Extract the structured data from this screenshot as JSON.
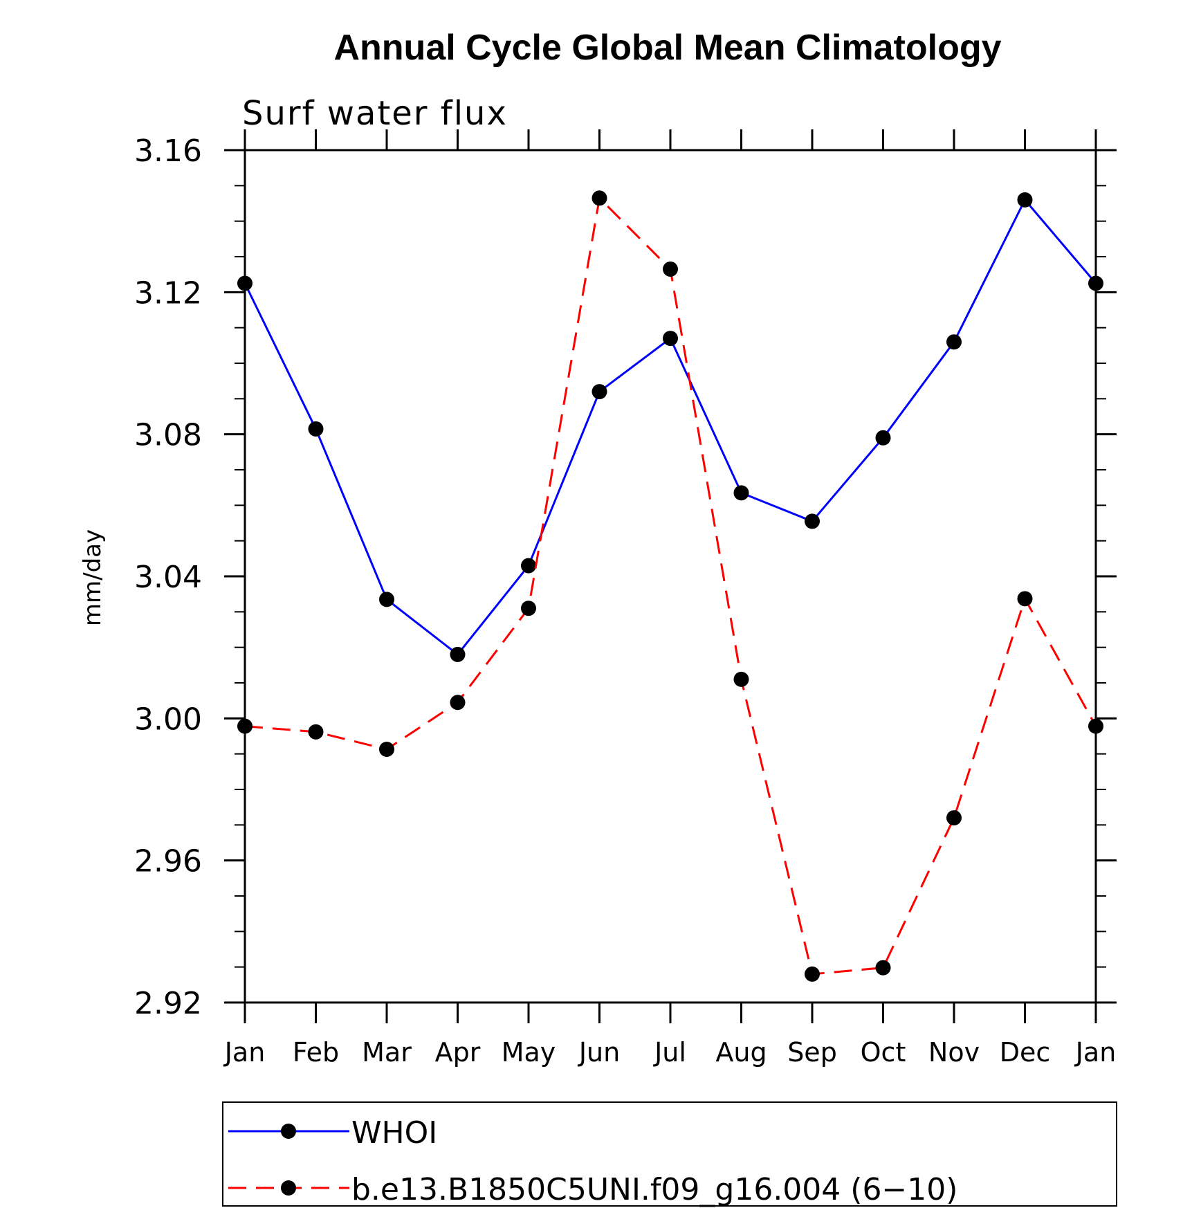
{
  "chart_data": {
    "type": "line",
    "title": "Annual Cycle Global Mean Climatology",
    "subtitle": "Surf  water  flux",
    "xlabel": "",
    "ylabel": "mm/day",
    "categories": [
      "Jan",
      "Feb",
      "Mar",
      "Apr",
      "May",
      "Jun",
      "Jul",
      "Aug",
      "Sep",
      "Oct",
      "Nov",
      "Dec",
      "Jan"
    ],
    "ylim": [
      2.92,
      3.16
    ],
    "yticks": [
      "3.16",
      "3.12",
      "3.08",
      "3.04",
      "3.00",
      "2.96",
      "2.92"
    ],
    "series": [
      {
        "name": "WHOI",
        "color": "#0000ff",
        "dash": "solid",
        "marker": "filled-circle",
        "values": [
          3.1225,
          3.0815,
          3.0335,
          3.018,
          3.043,
          3.092,
          3.107,
          3.0635,
          3.0555,
          3.079,
          3.106,
          3.146,
          3.1225
        ]
      },
      {
        "name": "b.e13.B1850C5UNI.f09_g16.004 (6−10)",
        "color": "#ff0000",
        "dash": "dashed",
        "marker": "filled-circle",
        "values": [
          2.9978,
          2.9962,
          2.9913,
          3.0045,
          3.031,
          3.1465,
          3.1265,
          3.011,
          2.928,
          2.9298,
          2.972,
          3.0337,
          2.9978
        ]
      }
    ],
    "grid": false,
    "legend": "bottom"
  }
}
